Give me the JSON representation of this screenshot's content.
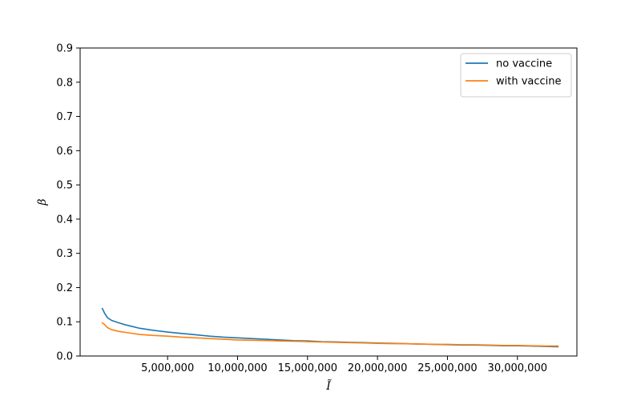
{
  "chart_data": {
    "type": "line",
    "xlabel": "Ĩ",
    "ylabel": "β",
    "xlim": [
      -1250000,
      34250000
    ],
    "ylim": [
      0.0,
      0.9
    ],
    "xticks": [
      5000000,
      10000000,
      15000000,
      20000000,
      25000000,
      30000000
    ],
    "xtick_labels": [
      "5,000,000",
      "10,000,000",
      "15,000,000",
      "20,000,000",
      "25,000,000",
      "30,000,000"
    ],
    "yticks": [
      0.0,
      0.1,
      0.2,
      0.3,
      0.4,
      0.5,
      0.6,
      0.7,
      0.8,
      0.9
    ],
    "ytick_labels": [
      "0.0",
      "0.1",
      "0.2",
      "0.3",
      "0.4",
      "0.5",
      "0.6",
      "0.7",
      "0.8",
      "0.9"
    ],
    "legend_position": "top-right",
    "grid": false,
    "series": [
      {
        "name": "no vaccine",
        "color": "#1f77b4",
        "x": [
          330000,
          500000,
          700000,
          1000000,
          1500000,
          2000000,
          2500000,
          3000000,
          4000000,
          5000000,
          6000000,
          7000000,
          8000000,
          9000000,
          10000000,
          11000000,
          12000000,
          13000000,
          14000000,
          15000000,
          16000000,
          17000000,
          18000000,
          19000000,
          20000000,
          21000000,
          22000000,
          23000000,
          24000000,
          25000000,
          26000000,
          27000000,
          28000000,
          29000000,
          30000000,
          31000000,
          32000000,
          32900000
        ],
        "y": [
          0.139,
          0.125,
          0.112,
          0.104,
          0.097,
          0.091,
          0.086,
          0.081,
          0.075,
          0.07,
          0.066,
          0.062,
          0.058,
          0.055,
          0.053,
          0.051,
          0.049,
          0.047,
          0.045,
          0.044,
          0.042,
          0.041,
          0.04,
          0.039,
          0.038,
          0.037,
          0.036,
          0.035,
          0.034,
          0.033,
          0.032,
          0.032,
          0.031,
          0.03,
          0.03,
          0.029,
          0.028,
          0.027
        ]
      },
      {
        "name": "with vaccine",
        "color": "#ff7f0e",
        "x": [
          330000,
          500000,
          700000,
          1000000,
          1500000,
          2000000,
          2500000,
          3000000,
          4000000,
          5000000,
          6000000,
          7000000,
          8000000,
          9000000,
          10000000,
          11000000,
          12000000,
          13000000,
          14000000,
          15000000,
          16000000,
          17000000,
          18000000,
          19000000,
          20000000,
          21000000,
          22000000,
          23000000,
          24000000,
          25000000,
          26000000,
          27000000,
          28000000,
          29000000,
          30000000,
          31000000,
          32000000,
          32900000
        ],
        "y": [
          0.097,
          0.092,
          0.083,
          0.077,
          0.072,
          0.069,
          0.066,
          0.063,
          0.06,
          0.058,
          0.055,
          0.053,
          0.051,
          0.049,
          0.047,
          0.046,
          0.045,
          0.044,
          0.043,
          0.042,
          0.041,
          0.04,
          0.039,
          0.038,
          0.037,
          0.036,
          0.036,
          0.035,
          0.034,
          0.034,
          0.033,
          0.033,
          0.032,
          0.031,
          0.031,
          0.03,
          0.029,
          0.029
        ]
      }
    ]
  }
}
